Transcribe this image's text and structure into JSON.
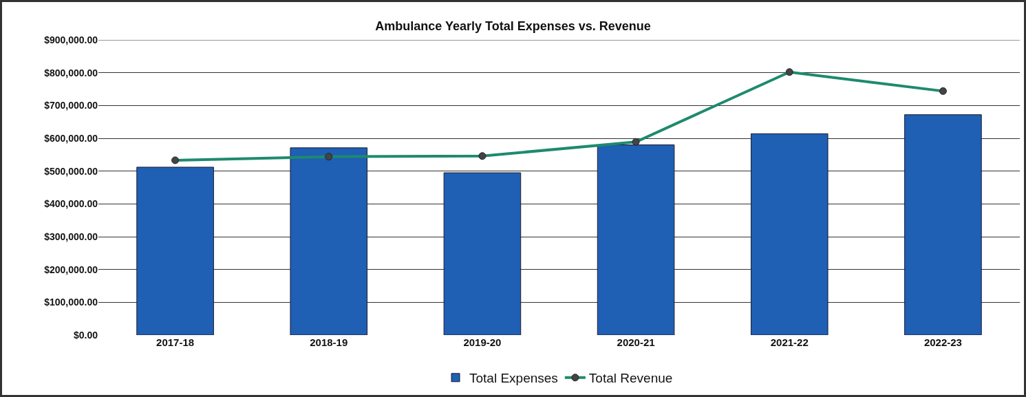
{
  "chart_data": {
    "type": "bar",
    "title": "Ambulance Yearly Total Expenses vs. Revenue",
    "categories": [
      "2017-18",
      "2018-19",
      "2019-20",
      "2020-21",
      "2021-22",
      "2022-23"
    ],
    "series": [
      {
        "name": "Total Expenses",
        "color": "#1f5fb4",
        "values": [
          512000,
          571000,
          495000,
          580000,
          614000,
          672000
        ]
      },
      {
        "name": "Total Revenue",
        "type": "line",
        "color": "#1e8a6e",
        "marker": "circle",
        "values": [
          533000,
          544000,
          546000,
          589000,
          802000,
          744000
        ]
      }
    ],
    "ylim": [
      0,
      900000
    ],
    "yticks": [
      {
        "value": 0,
        "label": "$0.00"
      },
      {
        "value": 100000,
        "label": "$100,000.00"
      },
      {
        "value": 200000,
        "label": "$200,000.00"
      },
      {
        "value": 300000,
        "label": "$300,000.00"
      },
      {
        "value": 400000,
        "label": "$400,000.00"
      },
      {
        "value": 500000,
        "label": "$500,000.00"
      },
      {
        "value": 600000,
        "label": "$600,000.00"
      },
      {
        "value": 700000,
        "label": "$700,000.00"
      },
      {
        "value": 800000,
        "label": "$800,000.00"
      },
      {
        "value": 900000,
        "label": "$900,000.00"
      }
    ],
    "grid": "y",
    "legend": "bottom"
  }
}
